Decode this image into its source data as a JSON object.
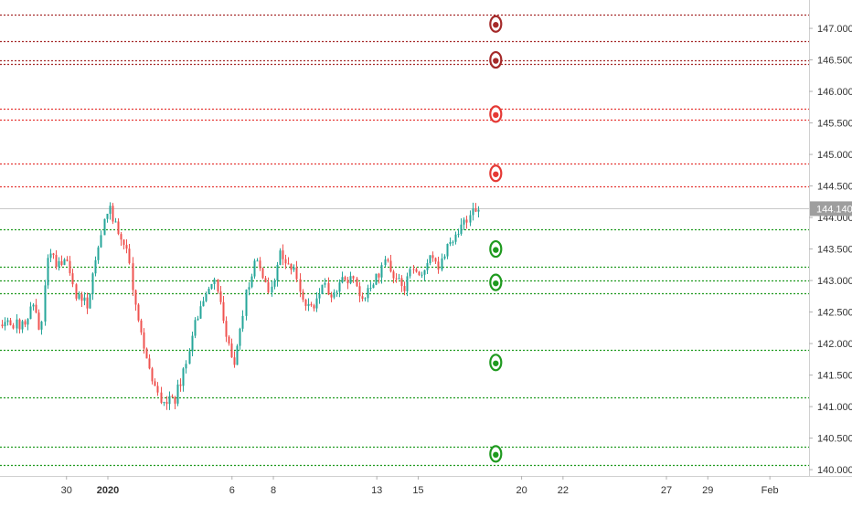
{
  "chart_data": {
    "type": "candlestick",
    "colors": {
      "up": "#26a69a",
      "down": "#ef5350",
      "support": "#1f9a1f",
      "resistance_near": "#e53935",
      "resistance_far": "#a52a2a",
      "price_badge": "#9e9e9e",
      "axis_text": "#333333"
    },
    "last_price": "144.140",
    "ylim": [
      139.9,
      147.45
    ],
    "y_ticks": [
      {
        "value": 147.0,
        "label": "147.000"
      },
      {
        "value": 146.5,
        "label": "146.500"
      },
      {
        "value": 146.0,
        "label": "146.000"
      },
      {
        "value": 145.5,
        "label": "145.500"
      },
      {
        "value": 145.0,
        "label": "145.000"
      },
      {
        "value": 144.5,
        "label": "144.500"
      },
      {
        "value": 144.0,
        "label": "144.000"
      },
      {
        "value": 143.5,
        "label": "143.500"
      },
      {
        "value": 143.0,
        "label": "143.000"
      },
      {
        "value": 142.5,
        "label": "142.500"
      },
      {
        "value": 142.0,
        "label": "142.000"
      },
      {
        "value": 141.5,
        "label": "141.500"
      },
      {
        "value": 141.0,
        "label": "141.000"
      },
      {
        "value": 140.5,
        "label": "140.500"
      },
      {
        "value": 140.0,
        "label": "140.000"
      }
    ],
    "x_ticks": [
      {
        "day": -2,
        "label": "30",
        "bold": false
      },
      {
        "day": 0,
        "label": "2020",
        "bold": true
      },
      {
        "day": 6,
        "label": "6",
        "bold": false
      },
      {
        "day": 8,
        "label": "8",
        "bold": false
      },
      {
        "day": 13,
        "label": "13",
        "bold": false
      },
      {
        "day": 15,
        "label": "15",
        "bold": false
      },
      {
        "day": 20,
        "label": "20",
        "bold": false
      },
      {
        "day": 22,
        "label": "22",
        "bold": false
      },
      {
        "day": 27,
        "label": "27",
        "bold": false
      },
      {
        "day": 29,
        "label": "29",
        "bold": false
      },
      {
        "day": 32,
        "label": "Feb",
        "bold": false
      }
    ],
    "x_range_days": [
      -4,
      32.15
    ],
    "levels": [
      {
        "price": 147.22,
        "kind": "resistance_far"
      },
      {
        "price": 146.8,
        "kind": "resistance_far"
      },
      {
        "price": 146.49,
        "kind": "resistance_far"
      },
      {
        "price": 146.44,
        "kind": "resistance_far"
      },
      {
        "price": 145.73,
        "kind": "resistance_near"
      },
      {
        "price": 145.55,
        "kind": "resistance_near"
      },
      {
        "price": 144.86,
        "kind": "resistance_near"
      },
      {
        "price": 144.5,
        "kind": "resistance_near"
      },
      {
        "price": 143.81,
        "kind": "support"
      },
      {
        "price": 143.22,
        "kind": "support"
      },
      {
        "price": 143.0,
        "kind": "support"
      },
      {
        "price": 142.8,
        "kind": "support"
      },
      {
        "price": 141.9,
        "kind": "support"
      },
      {
        "price": 141.14,
        "kind": "support"
      },
      {
        "price": 140.36,
        "kind": "support"
      },
      {
        "price": 140.07,
        "kind": "support"
      }
    ],
    "markers": [
      {
        "day": 18.75,
        "price": 147.07,
        "kind": "resistance_far"
      },
      {
        "day": 18.75,
        "price": 146.5,
        "kind": "resistance_far"
      },
      {
        "day": 18.75,
        "price": 145.64,
        "kind": "resistance_near"
      },
      {
        "day": 18.75,
        "price": 144.7,
        "kind": "resistance_near"
      },
      {
        "day": 18.75,
        "price": 143.5,
        "kind": "support"
      },
      {
        "day": 18.75,
        "price": 142.97,
        "kind": "support"
      },
      {
        "day": 18.75,
        "price": 141.7,
        "kind": "support"
      },
      {
        "day": 18.75,
        "price": 140.25,
        "kind": "support"
      }
    ],
    "path_keypoints": [
      [
        -4.0,
        142.3
      ],
      [
        -3.6,
        142.7
      ],
      [
        -3.25,
        142.1
      ],
      [
        -2.9,
        143.55
      ],
      [
        -2.5,
        143.25
      ],
      [
        -2.0,
        143.25
      ],
      [
        -1.6,
        142.8
      ],
      [
        -1.0,
        142.6
      ],
      [
        -0.5,
        143.5
      ],
      [
        0.0,
        144.2
      ],
      [
        0.3,
        143.9
      ],
      [
        0.6,
        143.7
      ],
      [
        0.9,
        143.55
      ],
      [
        1.3,
        142.6
      ],
      [
        1.8,
        141.9
      ],
      [
        2.2,
        141.3
      ],
      [
        2.6,
        141.05
      ],
      [
        3.2,
        141.1
      ],
      [
        3.6,
        141.5
      ],
      [
        4.2,
        142.3
      ],
      [
        4.7,
        142.8
      ],
      [
        5.2,
        142.95
      ],
      [
        5.6,
        142.3
      ],
      [
        6.1,
        141.6
      ],
      [
        6.6,
        142.7
      ],
      [
        7.1,
        143.35
      ],
      [
        7.5,
        143.0
      ],
      [
        7.8,
        142.7
      ],
      [
        8.3,
        143.4
      ],
      [
        8.8,
        143.3
      ],
      [
        9.2,
        142.95
      ],
      [
        9.6,
        142.6
      ],
      [
        10.0,
        142.6
      ],
      [
        10.4,
        142.9
      ],
      [
        10.9,
        142.75
      ],
      [
        11.3,
        143.1
      ],
      [
        11.8,
        143.0
      ],
      [
        12.2,
        142.7
      ],
      [
        12.6,
        142.85
      ],
      [
        13.0,
        143.1
      ],
      [
        13.5,
        143.3
      ],
      [
        13.9,
        143.0
      ],
      [
        14.3,
        142.9
      ],
      [
        14.7,
        143.2
      ],
      [
        15.1,
        143.05
      ],
      [
        15.5,
        143.35
      ],
      [
        16.0,
        143.2
      ],
      [
        16.5,
        143.6
      ],
      [
        17.0,
        143.85
      ],
      [
        17.5,
        144.0
      ],
      [
        17.9,
        144.2
      ]
    ]
  }
}
